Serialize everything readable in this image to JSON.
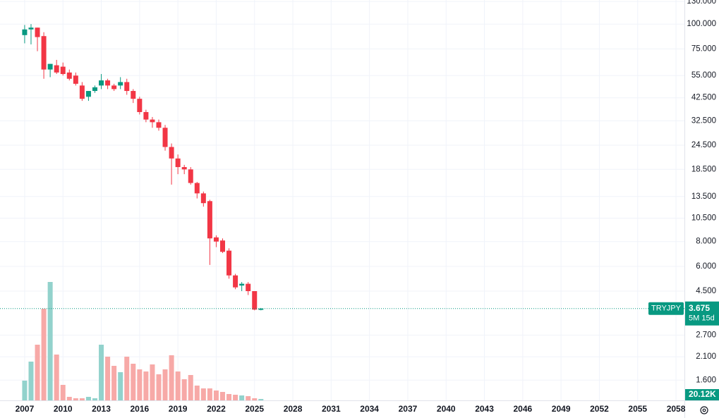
{
  "chart_data": {
    "type": "candlestick",
    "symbol": "TRYJPY",
    "countdown": "5M 15d",
    "log_scale": true,
    "grid": true,
    "up_color": "#089981",
    "down_color": "#f23645",
    "x": [
      2007,
      2007.5,
      2008,
      2008.5,
      2009,
      2009.5,
      2010,
      2010.5,
      2011,
      2011.5,
      2012,
      2012.5,
      2013,
      2013.5,
      2014,
      2014.5,
      2015,
      2015.5,
      2016,
      2016.5,
      2017,
      2017.5,
      2018,
      2018.5,
      2019,
      2019.5,
      2020,
      2020.5,
      2021,
      2021.5,
      2022,
      2022.5,
      2023,
      2023.5,
      2024,
      2024.5,
      2025,
      2025.5
    ],
    "open": [
      88,
      94,
      96,
      87,
      59,
      62,
      61,
      57,
      55,
      49,
      43,
      46,
      49,
      52,
      49,
      49,
      51,
      46,
      42,
      36,
      33,
      32,
      30,
      24,
      21,
      19,
      18.5,
      15.8,
      14,
      12.8,
      8.4,
      8.1,
      7.2,
      5.4,
      4.8,
      4.9,
      4.5,
      3.62
    ],
    "high": [
      99,
      100,
      96,
      91,
      63,
      66,
      64,
      59,
      57,
      51,
      46,
      49,
      56,
      53,
      50,
      54,
      53,
      47,
      43,
      37,
      34,
      33,
      31,
      25,
      22,
      19.5,
      19,
      16,
      14.3,
      13,
      8.6,
      8.3,
      7.4,
      5.5,
      5,
      5,
      4.5,
      3.7
    ],
    "low": [
      80,
      79,
      73,
      53,
      54,
      56,
      55,
      52,
      49,
      41,
      41,
      45,
      47,
      47,
      46,
      47,
      44,
      40,
      35,
      32,
      30,
      29,
      23,
      15.5,
      17.5,
      17.5,
      15.5,
      13.2,
      12,
      6.1,
      7.5,
      7,
      5.2,
      4.6,
      4.5,
      4.3,
      3.6,
      3.6
    ],
    "close": [
      94,
      96,
      86,
      59,
      63,
      57,
      56,
      53,
      50,
      42,
      46,
      48,
      52,
      49,
      47,
      51,
      46,
      42,
      36,
      33,
      32,
      30,
      24,
      21,
      19,
      18.5,
      15.8,
      14,
      12.5,
      8.3,
      8,
      7.1,
      5.4,
      4.7,
      4.9,
      4.5,
      3.63,
      3.675
    ],
    "volume": {
      "values": [
        280000,
        550000,
        790000,
        1300000,
        1680000,
        650000,
        220000,
        50000,
        30000,
        30000,
        50000,
        30000,
        790000,
        620000,
        490000,
        400000,
        620000,
        520000,
        440000,
        410000,
        510000,
        370000,
        440000,
        640000,
        410000,
        300000,
        360000,
        210000,
        170000,
        170000,
        140000,
        120000,
        90000,
        80000,
        70000,
        60000,
        30000,
        20120
      ],
      "last_value_label": "20.12K",
      "up_color": "#92d2cc",
      "down_color": "#f7a9a7"
    },
    "xlim": [
      2005.07,
      2058.66
    ],
    "xticks": [
      2007,
      2010,
      2013,
      2016,
      2019,
      2022,
      2025,
      2028,
      2031,
      2034,
      2037,
      2040,
      2043,
      2046,
      2049,
      2052,
      2055,
      2058
    ],
    "ylim": [
      1.265,
      132.3
    ],
    "yticks": [
      {
        "value": 130,
        "label": "130.000"
      },
      {
        "value": 100,
        "label": "100.000"
      },
      {
        "value": 75,
        "label": "75.000"
      },
      {
        "value": 55,
        "label": "55.000"
      },
      {
        "value": 42.5,
        "label": "42.500"
      },
      {
        "value": 32.5,
        "label": "32.500"
      },
      {
        "value": 24.5,
        "label": "24.500"
      },
      {
        "value": 18.5,
        "label": "18.500"
      },
      {
        "value": 13.5,
        "label": "13.500"
      },
      {
        "value": 10.5,
        "label": "10.500"
      },
      {
        "value": 8,
        "label": "8.000"
      },
      {
        "value": 6,
        "label": "6.000"
      },
      {
        "value": 4.5,
        "label": "4.500"
      },
      {
        "value": 2.7,
        "label": "2.700"
      },
      {
        "value": 2.1,
        "label": "2.100"
      },
      {
        "value": 1.6,
        "label": "1.600"
      }
    ],
    "y2lim": [
      0,
      5680000
    ]
  }
}
